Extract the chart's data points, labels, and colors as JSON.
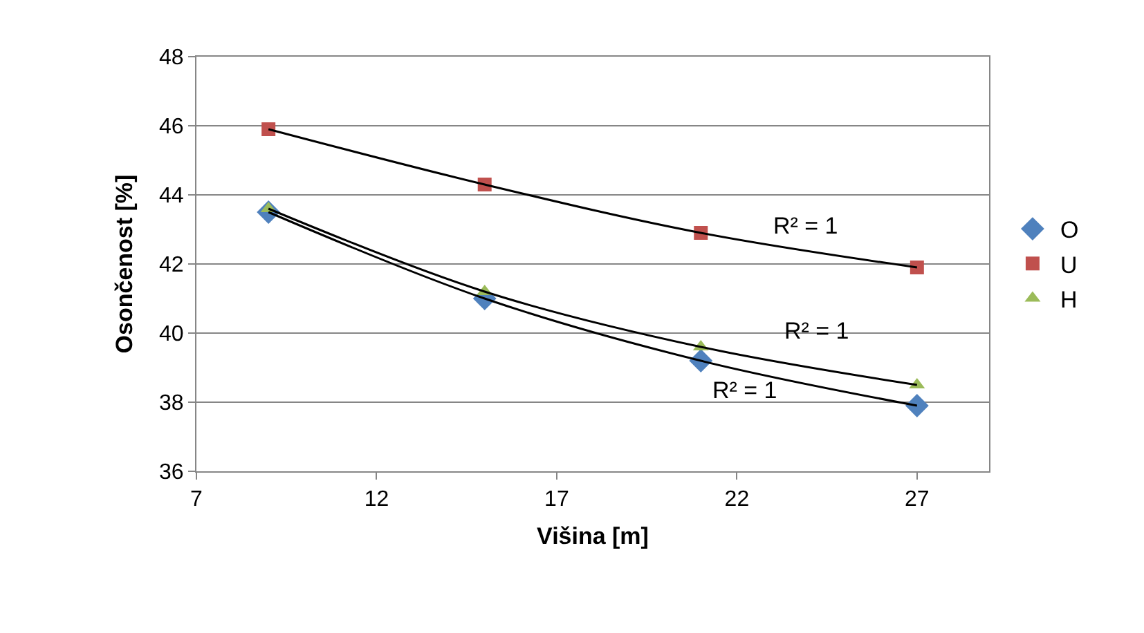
{
  "chart_data": {
    "type": "scatter",
    "xlabel": "Višina [m]",
    "ylabel": "Osončenost [%]",
    "x": [
      9,
      15,
      21,
      27
    ],
    "series": [
      {
        "name": "O",
        "color": "#4f81bd",
        "marker": "diamond",
        "values": [
          43.5,
          41.0,
          39.2,
          37.9
        ]
      },
      {
        "name": "U",
        "color": "#c0504d",
        "marker": "square",
        "values": [
          45.9,
          44.3,
          42.9,
          41.9
        ]
      },
      {
        "name": "H",
        "color": "#9bbb59",
        "marker": "triangle",
        "values": [
          43.6,
          41.2,
          39.6,
          38.5
        ]
      },
      {
        "type": "line",
        "color": "#000000",
        "marker": "none",
        "x": [
          9,
          15,
          21,
          27
        ],
        "values": [
          43.5,
          41.0,
          39.2,
          37.9
        ]
      },
      {
        "type": "line",
        "color": "#000000",
        "marker": "none",
        "x": [
          9,
          15,
          21,
          27
        ],
        "values": [
          45.9,
          44.3,
          42.9,
          41.9
        ]
      },
      {
        "type": "line",
        "color": "#000000",
        "marker": "none",
        "x": [
          9,
          15,
          21,
          27
        ],
        "values": [
          43.6,
          41.2,
          39.6,
          38.5
        ]
      }
    ],
    "annotations": [
      "R² = 1",
      "R² = 1",
      "R² = 1"
    ],
    "xlim": [
      7,
      29
    ],
    "xticks": [
      7,
      12,
      17,
      22,
      27
    ],
    "ylim": [
      36,
      48
    ],
    "yticks": [
      36,
      38,
      40,
      42,
      44,
      46,
      48
    ],
    "grid": "y",
    "legend": "right"
  }
}
